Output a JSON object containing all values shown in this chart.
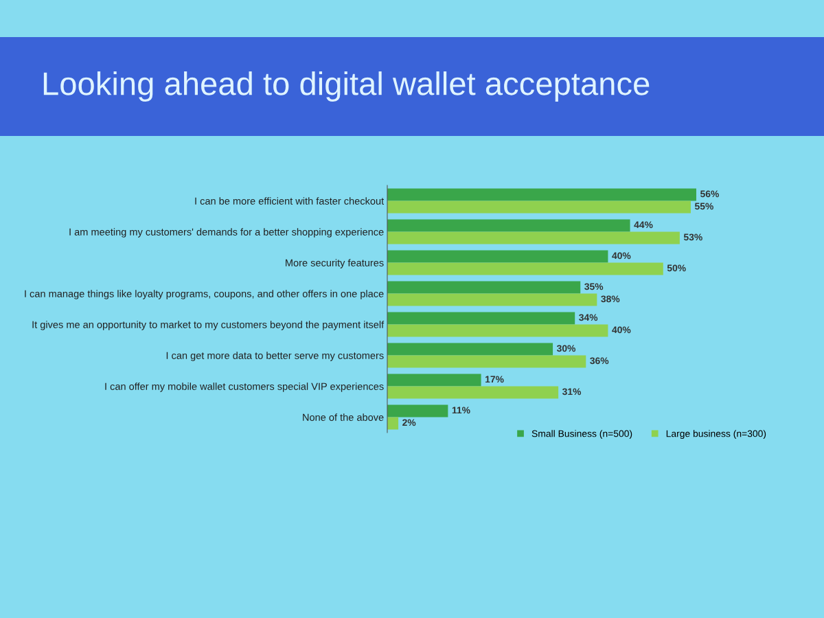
{
  "chart_data": {
    "type": "bar",
    "orientation": "horizontal",
    "title": "Looking ahead to digital wallet acceptance",
    "categories": [
      "I can be more efficient with faster checkout",
      "I am meeting my customers' demands for a better shopping experience",
      "More security features",
      "I can manage things like loyalty programs, coupons, and other offers in one place",
      "It gives me an opportunity to market to my customers beyond the payment itself",
      "I can get more data to better serve my customers",
      "I can offer my mobile wallet customers special VIP experiences",
      "None of the above"
    ],
    "series": [
      {
        "name": "Small Business (n=500)",
        "color": "#3aa64a",
        "values": [
          56,
          44,
          40,
          35,
          34,
          30,
          17,
          11
        ],
        "value_labels": [
          "56%",
          "44%",
          "40%",
          "35%",
          "34%",
          "30%",
          "17%",
          "11%"
        ]
      },
      {
        "name": "Large business (n=300)",
        "color": "#8fd14f",
        "values": [
          55,
          53,
          50,
          38,
          40,
          36,
          31,
          2
        ],
        "value_labels": [
          "55%",
          "53%",
          "50%",
          "38%",
          "40%",
          "36%",
          "31%",
          "2%"
        ]
      }
    ],
    "legend": "bottom right",
    "grid": false
  }
}
